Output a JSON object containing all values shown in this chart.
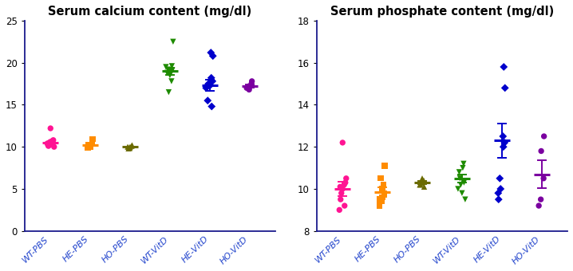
{
  "title_left": "Serum calcium content (mg/dl)",
  "title_right": "Serum phosphate content (mg/dl)",
  "categories": [
    "WT-PBS",
    "HE-PBS",
    "HO-PBS",
    "WT-VitD",
    "HE-VitD",
    "HO-VitD"
  ],
  "colors": [
    "#FF1493",
    "#FF8C00",
    "#6B6B00",
    "#1E8B00",
    "#0000CC",
    "#7B00A0"
  ],
  "markers": [
    "o",
    "s",
    "^",
    "v",
    "D",
    "o"
  ],
  "calcium_data": [
    [
      10.4,
      10.1,
      10.6,
      10.3,
      10.8,
      10.5,
      10.0,
      12.2,
      10.2,
      10.7
    ],
    [
      10.0,
      10.1,
      10.4,
      10.0,
      10.2,
      10.9,
      9.9
    ],
    [
      10.0,
      9.9,
      10.1,
      10.0,
      9.8,
      10.2,
      9.85
    ],
    [
      19.5,
      19.2,
      19.0,
      18.8,
      19.6,
      22.5,
      16.5,
      17.8,
      18.5,
      19.1
    ],
    [
      17.2,
      17.5,
      18.2,
      17.8,
      21.2,
      20.8,
      14.8,
      15.5,
      17.0,
      17.3
    ],
    [
      17.0,
      17.2,
      17.5,
      16.8,
      17.8,
      17.1
    ]
  ],
  "calcium_means": [
    10.5,
    10.2,
    10.05,
    19.0,
    17.3,
    17.2
  ],
  "calcium_sem_show": [
    false,
    false,
    false,
    true,
    true,
    true
  ],
  "calcium_sem": [
    0.18,
    0.12,
    0.08,
    0.42,
    0.65,
    0.18
  ],
  "calcium_ylim": [
    0,
    25
  ],
  "calcium_yticks": [
    0,
    5,
    10,
    15,
    20,
    25
  ],
  "phosphate_data": [
    [
      9.0,
      9.5,
      10.0,
      10.2,
      10.3,
      9.8,
      10.5,
      12.2,
      10.1,
      9.2
    ],
    [
      9.2,
      9.4,
      9.8,
      10.0,
      10.5,
      11.1,
      9.5,
      10.2,
      9.6
    ],
    [
      10.2,
      10.3,
      10.4,
      10.5,
      10.2,
      10.1,
      10.3
    ],
    [
      10.0,
      10.5,
      11.0,
      10.8,
      10.3,
      9.5,
      10.2,
      11.2,
      9.8
    ],
    [
      9.5,
      10.0,
      12.0,
      12.2,
      12.5,
      14.8,
      15.8,
      10.5,
      9.8
    ],
    [
      9.2,
      9.5,
      10.5,
      11.8,
      12.5
    ]
  ],
  "phosphate_means": [
    10.0,
    9.85,
    10.3,
    10.5,
    12.3,
    10.7
  ],
  "phosphate_sem_show": [
    true,
    true,
    true,
    true,
    true,
    true
  ],
  "phosphate_sem": [
    0.35,
    0.22,
    0.07,
    0.18,
    0.82,
    0.65
  ],
  "phosphate_ylim": [
    8,
    18
  ],
  "phosphate_yticks": [
    8,
    10,
    12,
    14,
    16,
    18
  ],
  "title_fontsize": 10.5,
  "tick_fontsize": 8.5,
  "label_fontsize": 8.0,
  "spine_color": "#1a1a8c",
  "tick_label_color": "#2244cc"
}
